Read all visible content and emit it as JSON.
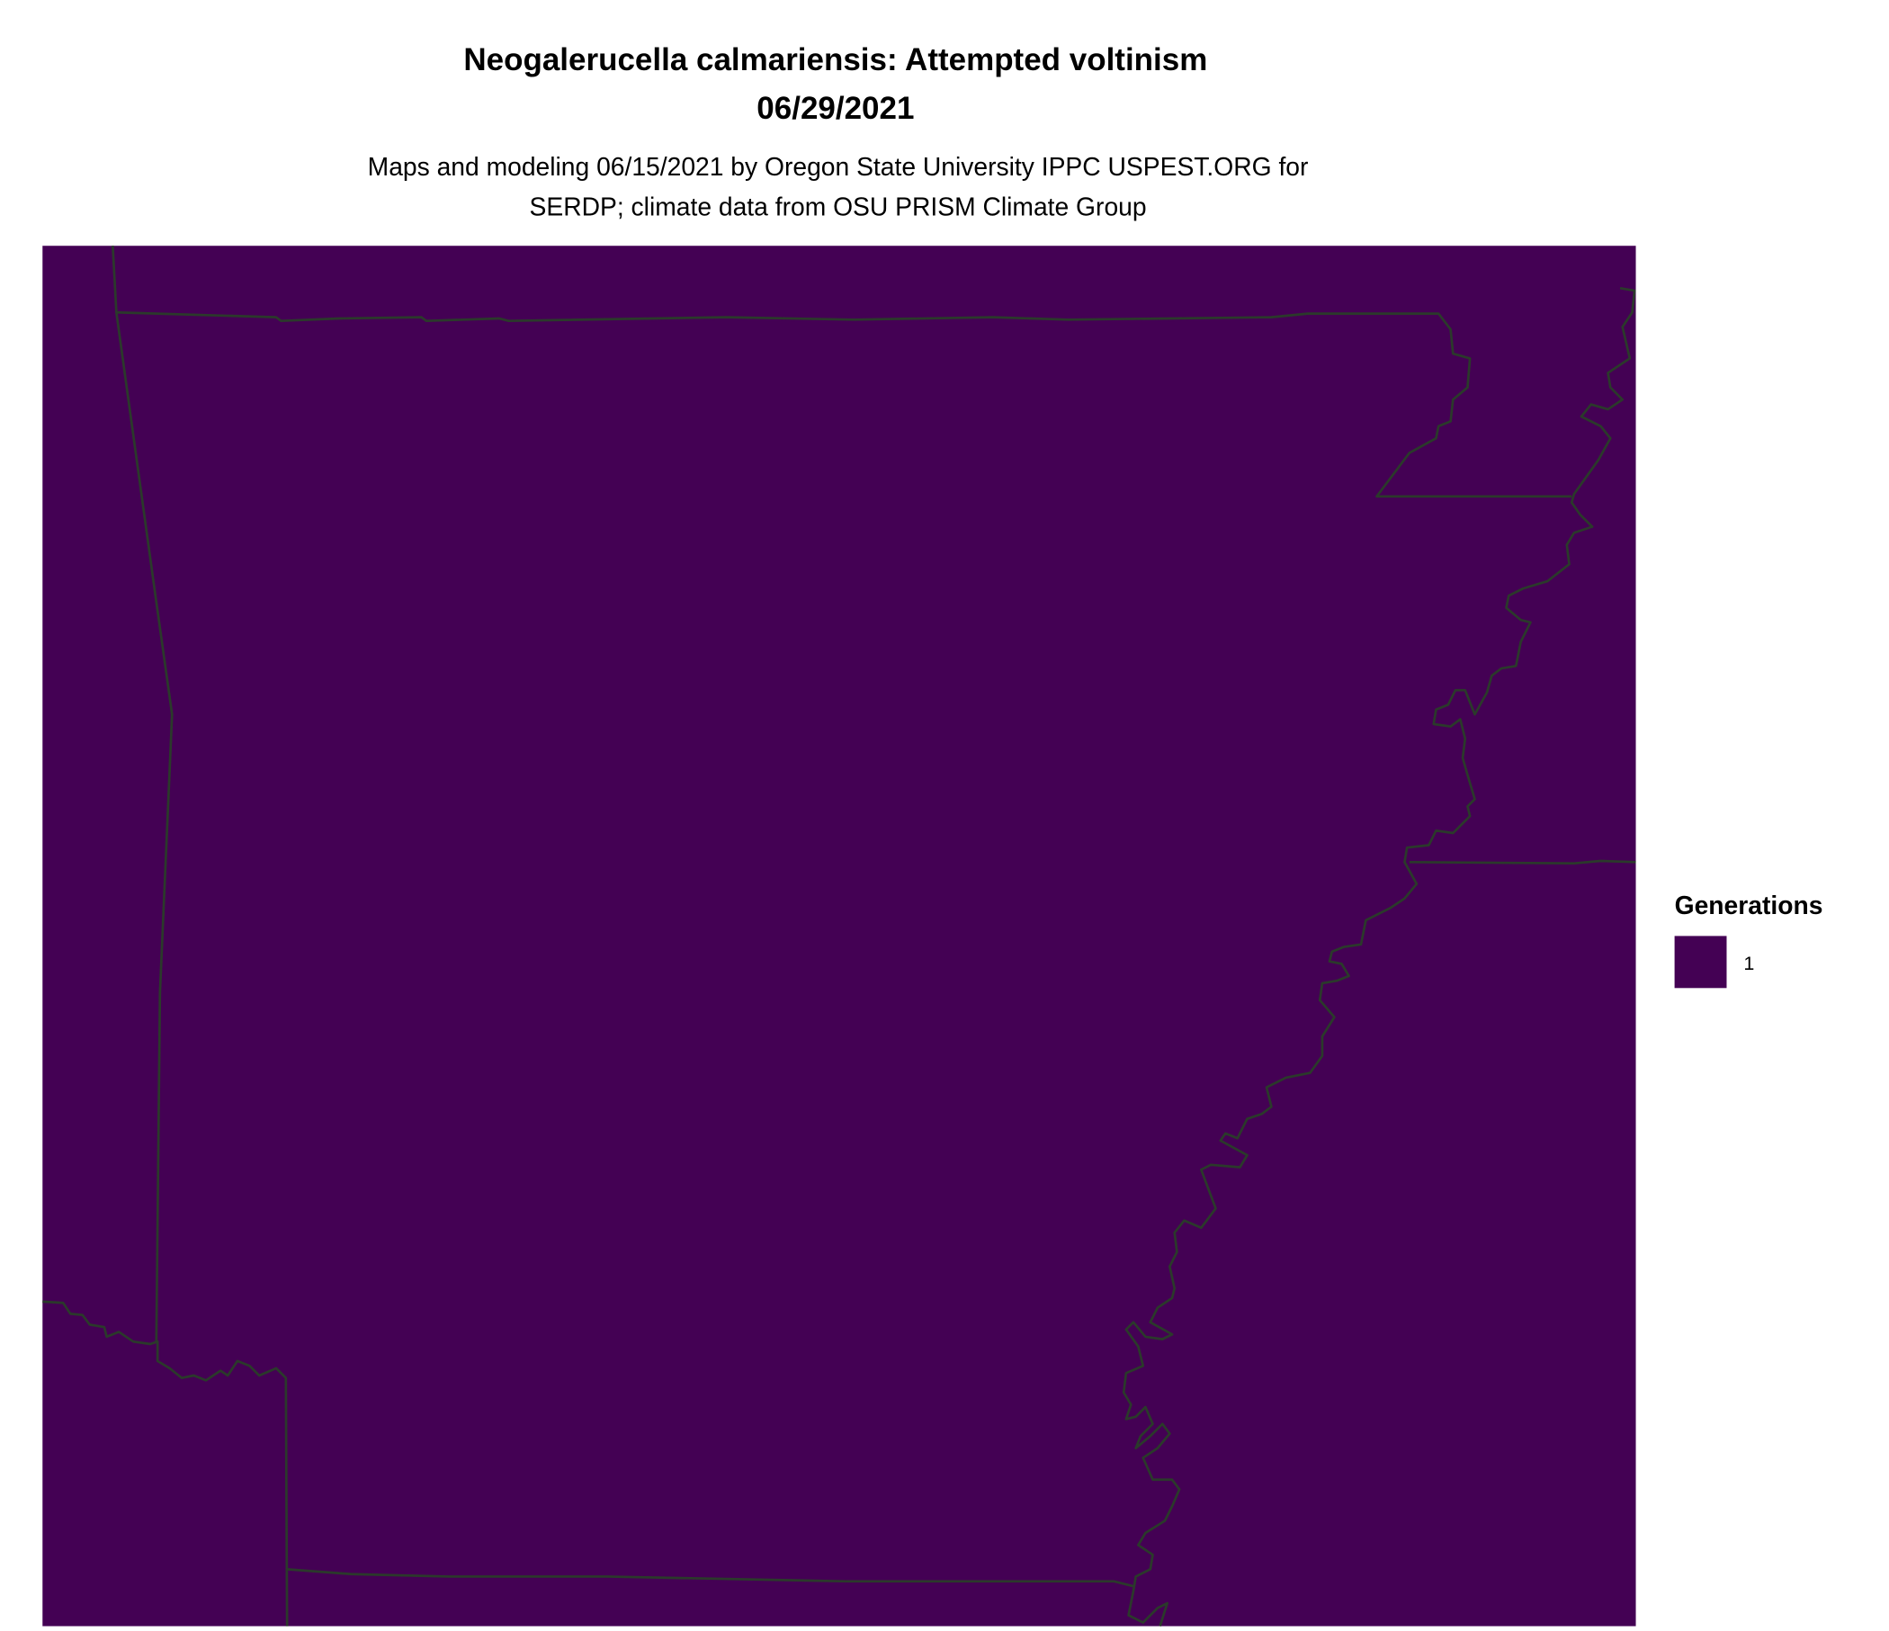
{
  "title": {
    "line1": "Neogalerucella calmariensis: Attempted voltinism",
    "line2": "06/29/2021"
  },
  "subtitle": {
    "line1": "Maps and modeling 06/15/2021 by Oregon State University IPPC USPEST.ORG for",
    "line2": "SERDP; climate data from OSU PRISM Climate Group"
  },
  "legend": {
    "title": "Generations",
    "items": [
      {
        "label": "1",
        "color": "#440154"
      }
    ]
  },
  "map": {
    "fill_color": "#440154",
    "boundary_color": "#2b3a2b"
  }
}
